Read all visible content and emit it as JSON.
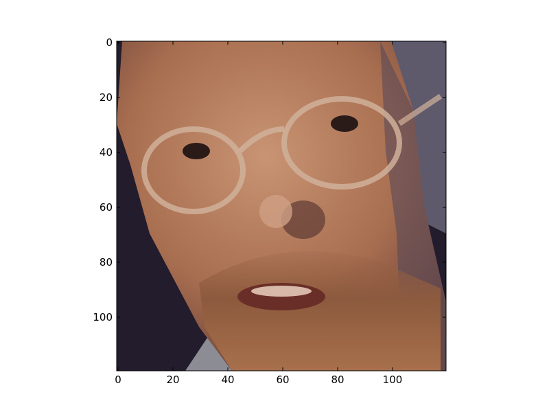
{
  "chart_data": {
    "type": "image",
    "xlim": [
      -0.5,
      119.5
    ],
    "ylim": [
      119.5,
      -0.5
    ],
    "xticks": [
      0,
      20,
      40,
      60,
      80,
      100
    ],
    "yticks": [
      0,
      20,
      40,
      60,
      80,
      100
    ]
  }
}
